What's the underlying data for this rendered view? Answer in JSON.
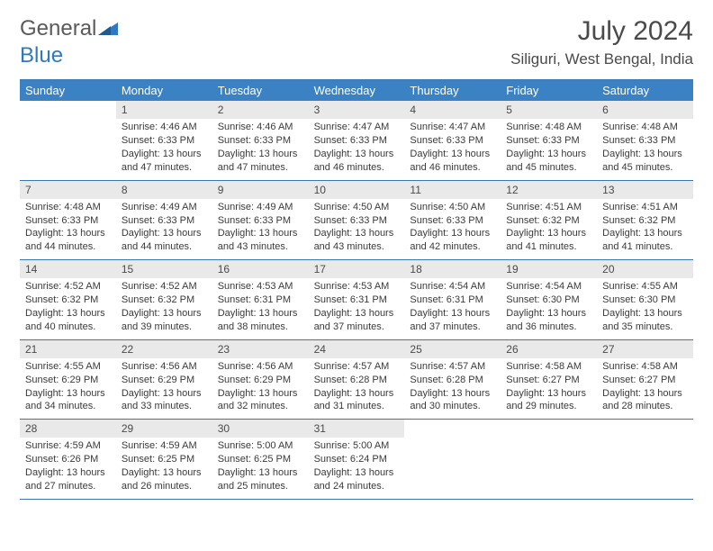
{
  "logo": {
    "word1": "General",
    "word2": "Blue"
  },
  "title": "July 2024",
  "location": "Siliguri, West Bengal, India",
  "colors": {
    "header_bg": "#3a82c4",
    "header_text": "#ffffff",
    "rule": "#3a77b0",
    "daynum_bg": "#e9e9e9",
    "text": "#3a3a3a",
    "logo_gray": "#5a5a5a",
    "logo_blue": "#2f79c2"
  },
  "day_names": [
    "Sunday",
    "Monday",
    "Tuesday",
    "Wednesday",
    "Thursday",
    "Friday",
    "Saturday"
  ],
  "weeks": [
    [
      {
        "n": "",
        "l1": "",
        "l2": "",
        "l3": "",
        "l4": ""
      },
      {
        "n": "1",
        "l1": "Sunrise: 4:46 AM",
        "l2": "Sunset: 6:33 PM",
        "l3": "Daylight: 13 hours",
        "l4": "and 47 minutes."
      },
      {
        "n": "2",
        "l1": "Sunrise: 4:46 AM",
        "l2": "Sunset: 6:33 PM",
        "l3": "Daylight: 13 hours",
        "l4": "and 47 minutes."
      },
      {
        "n": "3",
        "l1": "Sunrise: 4:47 AM",
        "l2": "Sunset: 6:33 PM",
        "l3": "Daylight: 13 hours",
        "l4": "and 46 minutes."
      },
      {
        "n": "4",
        "l1": "Sunrise: 4:47 AM",
        "l2": "Sunset: 6:33 PM",
        "l3": "Daylight: 13 hours",
        "l4": "and 46 minutes."
      },
      {
        "n": "5",
        "l1": "Sunrise: 4:48 AM",
        "l2": "Sunset: 6:33 PM",
        "l3": "Daylight: 13 hours",
        "l4": "and 45 minutes."
      },
      {
        "n": "6",
        "l1": "Sunrise: 4:48 AM",
        "l2": "Sunset: 6:33 PM",
        "l3": "Daylight: 13 hours",
        "l4": "and 45 minutes."
      }
    ],
    [
      {
        "n": "7",
        "l1": "Sunrise: 4:48 AM",
        "l2": "Sunset: 6:33 PM",
        "l3": "Daylight: 13 hours",
        "l4": "and 44 minutes."
      },
      {
        "n": "8",
        "l1": "Sunrise: 4:49 AM",
        "l2": "Sunset: 6:33 PM",
        "l3": "Daylight: 13 hours",
        "l4": "and 44 minutes."
      },
      {
        "n": "9",
        "l1": "Sunrise: 4:49 AM",
        "l2": "Sunset: 6:33 PM",
        "l3": "Daylight: 13 hours",
        "l4": "and 43 minutes."
      },
      {
        "n": "10",
        "l1": "Sunrise: 4:50 AM",
        "l2": "Sunset: 6:33 PM",
        "l3": "Daylight: 13 hours",
        "l4": "and 43 minutes."
      },
      {
        "n": "11",
        "l1": "Sunrise: 4:50 AM",
        "l2": "Sunset: 6:33 PM",
        "l3": "Daylight: 13 hours",
        "l4": "and 42 minutes."
      },
      {
        "n": "12",
        "l1": "Sunrise: 4:51 AM",
        "l2": "Sunset: 6:32 PM",
        "l3": "Daylight: 13 hours",
        "l4": "and 41 minutes."
      },
      {
        "n": "13",
        "l1": "Sunrise: 4:51 AM",
        "l2": "Sunset: 6:32 PM",
        "l3": "Daylight: 13 hours",
        "l4": "and 41 minutes."
      }
    ],
    [
      {
        "n": "14",
        "l1": "Sunrise: 4:52 AM",
        "l2": "Sunset: 6:32 PM",
        "l3": "Daylight: 13 hours",
        "l4": "and 40 minutes."
      },
      {
        "n": "15",
        "l1": "Sunrise: 4:52 AM",
        "l2": "Sunset: 6:32 PM",
        "l3": "Daylight: 13 hours",
        "l4": "and 39 minutes."
      },
      {
        "n": "16",
        "l1": "Sunrise: 4:53 AM",
        "l2": "Sunset: 6:31 PM",
        "l3": "Daylight: 13 hours",
        "l4": "and 38 minutes."
      },
      {
        "n": "17",
        "l1": "Sunrise: 4:53 AM",
        "l2": "Sunset: 6:31 PM",
        "l3": "Daylight: 13 hours",
        "l4": "and 37 minutes."
      },
      {
        "n": "18",
        "l1": "Sunrise: 4:54 AM",
        "l2": "Sunset: 6:31 PM",
        "l3": "Daylight: 13 hours",
        "l4": "and 37 minutes."
      },
      {
        "n": "19",
        "l1": "Sunrise: 4:54 AM",
        "l2": "Sunset: 6:30 PM",
        "l3": "Daylight: 13 hours",
        "l4": "and 36 minutes."
      },
      {
        "n": "20",
        "l1": "Sunrise: 4:55 AM",
        "l2": "Sunset: 6:30 PM",
        "l3": "Daylight: 13 hours",
        "l4": "and 35 minutes."
      }
    ],
    [
      {
        "n": "21",
        "l1": "Sunrise: 4:55 AM",
        "l2": "Sunset: 6:29 PM",
        "l3": "Daylight: 13 hours",
        "l4": "and 34 minutes."
      },
      {
        "n": "22",
        "l1": "Sunrise: 4:56 AM",
        "l2": "Sunset: 6:29 PM",
        "l3": "Daylight: 13 hours",
        "l4": "and 33 minutes."
      },
      {
        "n": "23",
        "l1": "Sunrise: 4:56 AM",
        "l2": "Sunset: 6:29 PM",
        "l3": "Daylight: 13 hours",
        "l4": "and 32 minutes."
      },
      {
        "n": "24",
        "l1": "Sunrise: 4:57 AM",
        "l2": "Sunset: 6:28 PM",
        "l3": "Daylight: 13 hours",
        "l4": "and 31 minutes."
      },
      {
        "n": "25",
        "l1": "Sunrise: 4:57 AM",
        "l2": "Sunset: 6:28 PM",
        "l3": "Daylight: 13 hours",
        "l4": "and 30 minutes."
      },
      {
        "n": "26",
        "l1": "Sunrise: 4:58 AM",
        "l2": "Sunset: 6:27 PM",
        "l3": "Daylight: 13 hours",
        "l4": "and 29 minutes."
      },
      {
        "n": "27",
        "l1": "Sunrise: 4:58 AM",
        "l2": "Sunset: 6:27 PM",
        "l3": "Daylight: 13 hours",
        "l4": "and 28 minutes."
      }
    ],
    [
      {
        "n": "28",
        "l1": "Sunrise: 4:59 AM",
        "l2": "Sunset: 6:26 PM",
        "l3": "Daylight: 13 hours",
        "l4": "and 27 minutes."
      },
      {
        "n": "29",
        "l1": "Sunrise: 4:59 AM",
        "l2": "Sunset: 6:25 PM",
        "l3": "Daylight: 13 hours",
        "l4": "and 26 minutes."
      },
      {
        "n": "30",
        "l1": "Sunrise: 5:00 AM",
        "l2": "Sunset: 6:25 PM",
        "l3": "Daylight: 13 hours",
        "l4": "and 25 minutes."
      },
      {
        "n": "31",
        "l1": "Sunrise: 5:00 AM",
        "l2": "Sunset: 6:24 PM",
        "l3": "Daylight: 13 hours",
        "l4": "and 24 minutes."
      },
      {
        "n": "",
        "l1": "",
        "l2": "",
        "l3": "",
        "l4": ""
      },
      {
        "n": "",
        "l1": "",
        "l2": "",
        "l3": "",
        "l4": ""
      },
      {
        "n": "",
        "l1": "",
        "l2": "",
        "l3": "",
        "l4": ""
      }
    ]
  ]
}
